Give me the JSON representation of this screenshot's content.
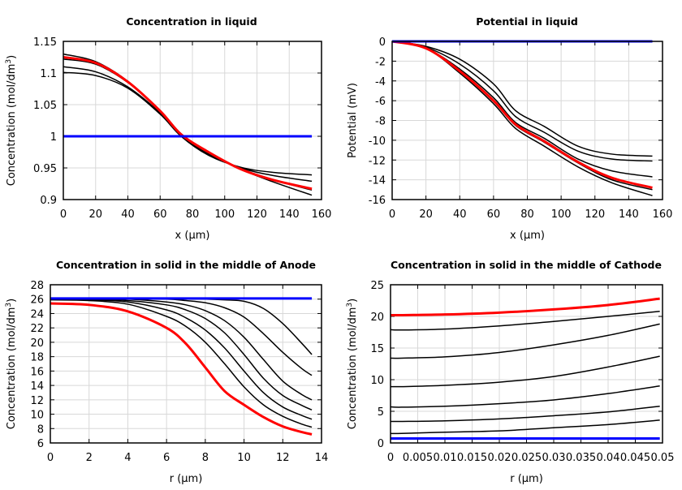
{
  "chart_data": [
    {
      "type": "line",
      "title": "Concentration in liquid",
      "xlabel": "x (µm)",
      "ylabel": "Concentration (mol/dm",
      "ylabel_sup": "3",
      "ylabel_end": ")",
      "xlim": [
        0,
        160
      ],
      "ylim": [
        0.9,
        1.15
      ],
      "xticks": [
        0,
        20,
        40,
        60,
        80,
        100,
        120,
        140,
        160
      ],
      "xtick_labels": [
        "0",
        "20",
        "40",
        "60",
        "80",
        "100",
        "120",
        "140",
        "160"
      ],
      "yticks": [
        0.9,
        0.95,
        1,
        1.05,
        1.1,
        1.15
      ],
      "ytick_labels": [
        "0.9",
        "0.95",
        "1",
        "1.05",
        "1.1",
        "1.15"
      ],
      "grid": true,
      "x": [
        0,
        20,
        40,
        60,
        73,
        90,
        110,
        130,
        154
      ],
      "series": [
        {
          "color": "#000000",
          "values": [
            1.13,
            1.118,
            1.087,
            1.04,
            1.003,
            0.975,
            0.948,
            0.928,
            0.907
          ]
        },
        {
          "color": "#000000",
          "values": [
            1.122,
            1.114,
            1.085,
            1.04,
            1.003,
            0.975,
            0.948,
            0.931,
            0.915
          ]
        },
        {
          "color": "#000000",
          "values": [
            1.11,
            1.102,
            1.078,
            1.037,
            1.001,
            0.972,
            0.95,
            0.938,
            0.929
          ]
        },
        {
          "color": "#000000",
          "values": [
            1.101,
            1.096,
            1.076,
            1.035,
            1.0,
            0.97,
            0.951,
            0.943,
            0.939
          ]
        },
        {
          "color": "#ff0000",
          "values": [
            1.125,
            1.116,
            1.086,
            1.04,
            1.003,
            0.975,
            0.948,
            0.931,
            0.917
          ]
        },
        {
          "color": "#0000ff",
          "values": [
            1,
            1,
            1,
            1,
            1,
            1,
            1,
            1,
            1
          ]
        }
      ]
    },
    {
      "type": "line",
      "title": "Potential in liquid",
      "xlabel": "x (µm)",
      "ylabel": "Potential (mV)",
      "ylabel_sup": "",
      "ylabel_end": "",
      "xlim": [
        0,
        160
      ],
      "ylim": [
        -16,
        0
      ],
      "xticks": [
        0,
        20,
        40,
        60,
        80,
        100,
        120,
        140,
        160
      ],
      "xtick_labels": [
        "0",
        "20",
        "40",
        "60",
        "80",
        "100",
        "120",
        "140",
        "160"
      ],
      "yticks": [
        -16,
        -14,
        -12,
        -10,
        -8,
        -6,
        -4,
        -2,
        0
      ],
      "ytick_labels": [
        "-16",
        "-14",
        "-12",
        "-10",
        "-8",
        "-6",
        "-4",
        "-2",
        "0"
      ],
      "grid": true,
      "x": [
        0,
        20,
        40,
        60,
        73,
        90,
        110,
        130,
        154
      ],
      "series": [
        {
          "color": "#000000",
          "values": [
            0,
            -0.5,
            -1.8,
            -4.3,
            -7.0,
            -8.6,
            -10.6,
            -11.4,
            -11.6
          ]
        },
        {
          "color": "#000000",
          "values": [
            0,
            -0.6,
            -2.3,
            -5.0,
            -7.6,
            -9.2,
            -11.1,
            -11.9,
            -12.1
          ]
        },
        {
          "color": "#000000",
          "values": [
            0,
            -0.7,
            -2.8,
            -5.7,
            -8.2,
            -9.8,
            -11.9,
            -13.1,
            -13.7
          ]
        },
        {
          "color": "#000000",
          "values": [
            0,
            -0.7,
            -3.0,
            -6.0,
            -8.5,
            -10.2,
            -12.3,
            -14.0,
            -15.0
          ]
        },
        {
          "color": "#000000",
          "values": [
            0,
            -0.7,
            -3.2,
            -6.3,
            -8.8,
            -10.6,
            -12.7,
            -14.3,
            -15.6
          ]
        },
        {
          "color": "#ff0000",
          "values": [
            0,
            -0.7,
            -3.0,
            -6.0,
            -8.4,
            -10.1,
            -12.2,
            -13.8,
            -14.8
          ]
        },
        {
          "color": "#0000ff",
          "values": [
            0,
            0,
            0,
            0,
            0,
            0,
            0,
            0,
            0
          ]
        }
      ]
    },
    {
      "type": "line",
      "title": "Concentration in solid in the middle of Anode",
      "xlabel": "r (µm)",
      "ylabel": "Concentration (mol/dm",
      "ylabel_sup": "3",
      "ylabel_end": ")",
      "xlim": [
        0,
        14
      ],
      "ylim": [
        6,
        28
      ],
      "xticks": [
        0,
        2,
        4,
        6,
        8,
        10,
        12,
        14
      ],
      "xtick_labels": [
        "0",
        "2",
        "4",
        "6",
        "8",
        "10",
        "12",
        "14"
      ],
      "yticks": [
        6,
        8,
        10,
        12,
        14,
        16,
        18,
        20,
        22,
        24,
        26,
        28
      ],
      "ytick_labels": [
        "6",
        "8",
        "10",
        "12",
        "14",
        "16",
        "18",
        "20",
        "22",
        "24",
        "26",
        "28"
      ],
      "grid": true,
      "x": [
        0,
        2,
        4,
        6,
        7,
        8,
        9,
        10,
        11,
        12,
        13,
        13.5
      ],
      "series": [
        {
          "color": "#000000",
          "values": [
            25.9,
            25.8,
            25.3,
            23.6,
            22.2,
            20.0,
            17.0,
            13.8,
            11.3,
            9.7,
            8.6,
            8.2
          ]
        },
        {
          "color": "#000000",
          "values": [
            26.0,
            25.9,
            25.6,
            24.5,
            23.4,
            21.7,
            19.2,
            16.0,
            13.0,
            11.0,
            9.8,
            9.3
          ]
        },
        {
          "color": "#000000",
          "values": [
            26.0,
            26.0,
            25.8,
            25.2,
            24.5,
            23.3,
            21.3,
            18.3,
            15.0,
            12.6,
            11.2,
            10.6
          ]
        },
        {
          "color": "#000000",
          "values": [
            26.0,
            26.0,
            26.0,
            25.6,
            25.2,
            24.4,
            23.0,
            20.7,
            17.6,
            14.6,
            12.7,
            12.0
          ]
        },
        {
          "color": "#000000",
          "values": [
            26.0,
            26.0,
            26.0,
            26.0,
            25.8,
            25.5,
            24.8,
            23.5,
            21.2,
            18.6,
            16.3,
            15.4
          ]
        },
        {
          "color": "#000000",
          "values": [
            26.0,
            26.0,
            26.0,
            26.0,
            26.0,
            26.0,
            25.9,
            25.7,
            24.7,
            22.6,
            19.8,
            18.3
          ]
        },
        {
          "color": "#ff0000",
          "values": [
            25.4,
            25.2,
            24.3,
            22.0,
            19.8,
            16.5,
            13.2,
            11.3,
            9.6,
            8.3,
            7.5,
            7.2
          ]
        },
        {
          "color": "#0000ff",
          "values": [
            26.1,
            26.1,
            26.1,
            26.1,
            26.1,
            26.1,
            26.1,
            26.1,
            26.1,
            26.1,
            26.1,
            26.1
          ]
        }
      ]
    },
    {
      "type": "line",
      "title": "Concentration in solid in the middle of Cathode",
      "xlabel": "r (µm)",
      "ylabel": "Concentration (mol/dm",
      "ylabel_sup": "3",
      "ylabel_end": ")",
      "xlim": [
        0,
        0.05
      ],
      "ylim": [
        0,
        25
      ],
      "xticks": [
        0,
        0.005,
        0.01,
        0.015,
        0.02,
        0.025,
        0.03,
        0.035,
        0.04,
        0.045,
        0.05
      ],
      "xtick_labels": [
        "0",
        "0.005",
        "0.01",
        "0.015",
        "0.02",
        "0.025",
        "0.03",
        "0.035",
        "0.04",
        "0.045",
        "0.05"
      ],
      "yticks": [
        0,
        5,
        10,
        15,
        20,
        25
      ],
      "ytick_labels": [
        "0",
        "5",
        "10",
        "15",
        "20",
        "25"
      ],
      "grid": true,
      "x": [
        0,
        0.002,
        0.01,
        0.02,
        0.03,
        0.04,
        0.0495
      ],
      "series": [
        {
          "color": "#000000",
          "values": [
            17.9,
            17.85,
            18.0,
            18.5,
            19.2,
            20.0,
            20.8
          ]
        },
        {
          "color": "#000000",
          "values": [
            13.4,
            13.4,
            13.6,
            14.3,
            15.5,
            17.0,
            18.8
          ]
        },
        {
          "color": "#000000",
          "values": [
            8.9,
            8.9,
            9.1,
            9.6,
            10.5,
            12.0,
            13.7
          ]
        },
        {
          "color": "#000000",
          "values": [
            5.7,
            5.65,
            5.8,
            6.2,
            6.8,
            7.8,
            9.0
          ]
        },
        {
          "color": "#000000",
          "values": [
            3.4,
            3.4,
            3.5,
            3.8,
            4.3,
            4.9,
            5.8
          ]
        },
        {
          "color": "#000000",
          "values": [
            1.5,
            1.5,
            1.7,
            1.9,
            2.4,
            2.9,
            3.6
          ]
        },
        {
          "color": "#ff0000",
          "values": [
            20.2,
            20.2,
            20.3,
            20.6,
            21.1,
            21.8,
            22.8
          ]
        },
        {
          "color": "#0000ff",
          "values": [
            0.7,
            0.7,
            0.7,
            0.7,
            0.7,
            0.7,
            0.7
          ]
        }
      ]
    }
  ]
}
